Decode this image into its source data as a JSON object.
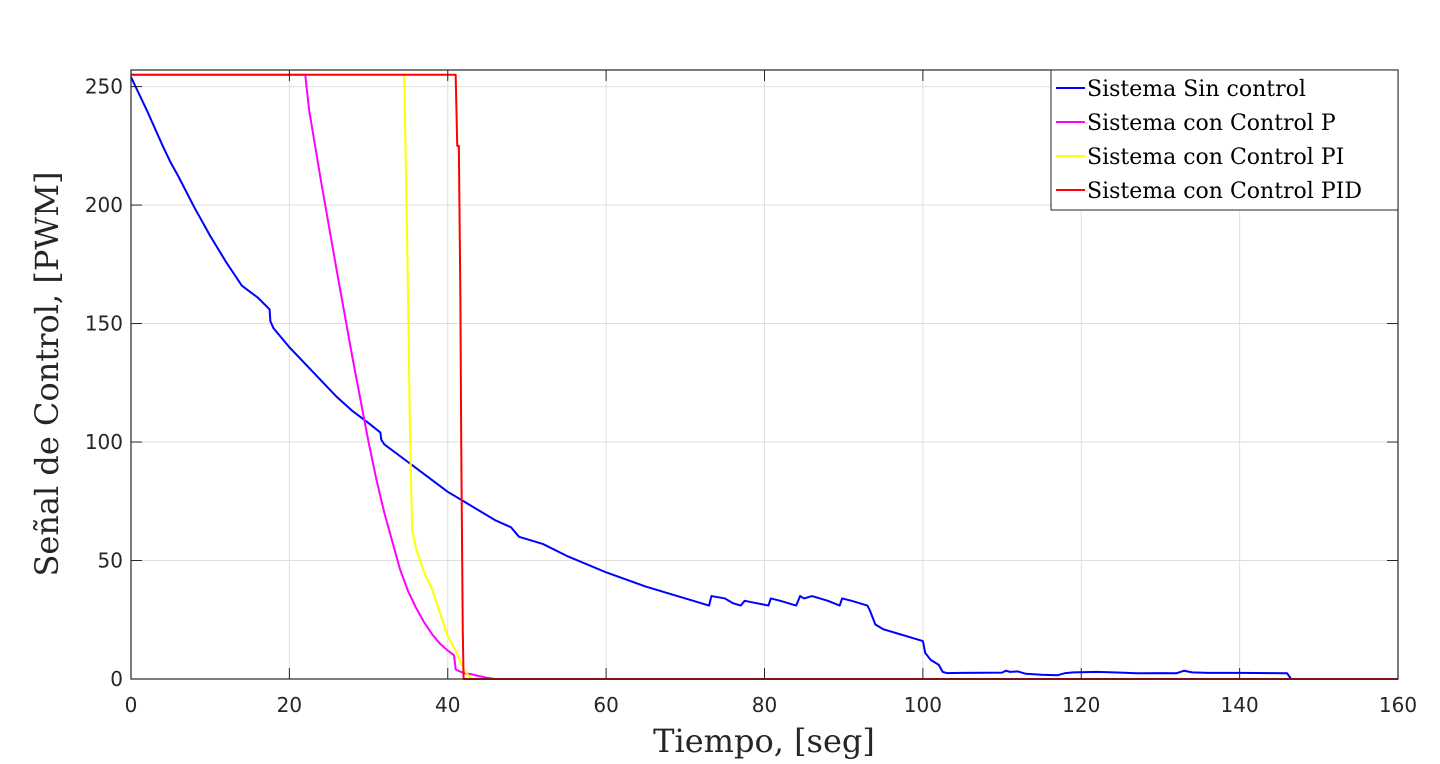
{
  "chart_data": {
    "type": "line",
    "xlabel": "Tiempo, [seg]",
    "ylabel": "Señal de Control, [PWM]",
    "xlim": [
      0,
      160
    ],
    "ylim": [
      0,
      257
    ],
    "xticks": [
      0,
      20,
      40,
      60,
      80,
      100,
      120,
      140,
      160
    ],
    "yticks": [
      0,
      50,
      100,
      150,
      200,
      250
    ],
    "grid": true,
    "legend_position": "top-right",
    "series": [
      {
        "name": "Sistema Sin control",
        "color": "#0000ff",
        "x": [
          0,
          2,
          4,
          5,
          6,
          8,
          10,
          12,
          14,
          16,
          17.5,
          17.6,
          18,
          20,
          22,
          24,
          26,
          28,
          30,
          31.5,
          31.6,
          32,
          34,
          36,
          38,
          40,
          42,
          44,
          46,
          48,
          49,
          50,
          52,
          55,
          60,
          65,
          70,
          73,
          73.3,
          75,
          76,
          77,
          77.5,
          79,
          80.5,
          80.8,
          82,
          84,
          84.5,
          85,
          86,
          88,
          89.5,
          89.8,
          91,
          93,
          93.3,
          94,
          95,
          97,
          100,
          100.3,
          101,
          102,
          102.5,
          103,
          105,
          110,
          110.5,
          111,
          112,
          113,
          114,
          115,
          117,
          118,
          119,
          122,
          124,
          125,
          127,
          128,
          130,
          132,
          133,
          134,
          136,
          140,
          144,
          146,
          146.5,
          160
        ],
        "y": [
          254,
          240,
          225,
          218,
          212,
          199,
          187,
          176,
          166,
          161,
          156,
          151,
          148,
          140,
          133,
          126,
          119,
          113,
          108,
          104,
          101,
          99,
          94,
          89,
          84,
          79,
          75,
          71,
          67,
          64,
          60,
          59,
          57,
          52,
          45,
          39,
          34,
          31,
          35,
          34,
          32,
          31,
          33,
          32,
          31,
          34,
          33,
          31,
          35,
          34,
          35,
          33,
          31,
          34,
          33,
          31,
          29,
          23,
          21,
          19,
          16,
          11,
          8,
          6,
          3,
          2.5,
          2.6,
          2.7,
          3.5,
          3,
          3.2,
          2.2,
          2,
          1.8,
          1.6,
          2.5,
          2.8,
          3,
          2.8,
          2.7,
          2.4,
          2.4,
          2.5,
          2.4,
          3.5,
          2.8,
          2.6,
          2.6,
          2.5,
          2.4,
          0,
          0
        ]
      },
      {
        "name": "Sistema con Control P",
        "color": "#ff00ff",
        "x": [
          0,
          22,
          22.5,
          24,
          26,
          28,
          30,
          31,
          32,
          33,
          34,
          35,
          36,
          37,
          38,
          39,
          40,
          40.8,
          41,
          42,
          43,
          44,
          45,
          46,
          160
        ],
        "y": [
          255,
          255,
          240,
          210,
          172,
          135,
          100,
          84,
          70,
          58,
          46,
          37,
          30,
          24,
          19,
          15,
          12,
          10,
          4,
          2.5,
          2,
          1.2,
          0.5,
          0,
          0
        ]
      },
      {
        "name": "Sistema con Control PI",
        "color": "#ffff00",
        "x": [
          0,
          34.5,
          34.9,
          35.2,
          35.5,
          36,
          37,
          38,
          39,
          40,
          40.5,
          41,
          41.5,
          42,
          42.5,
          43,
          160
        ],
        "y": [
          255,
          255,
          180,
          110,
          63,
          55,
          45,
          38,
          28,
          18,
          15,
          12,
          8,
          4,
          2,
          0,
          0
        ]
      },
      {
        "name": "Sistema con Control PID",
        "color": "#ff0000",
        "x": [
          0,
          41,
          41.2,
          41.4,
          41.6,
          41.7,
          41.9,
          42,
          160
        ],
        "y": [
          255,
          255,
          225,
          225,
          160,
          100,
          20,
          0,
          0
        ]
      }
    ]
  }
}
